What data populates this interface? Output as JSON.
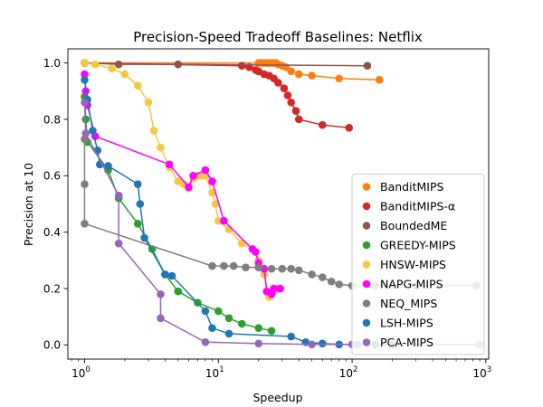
{
  "chart_data": {
    "type": "scatter",
    "title": "Precision-Speed Tradeoff Baselines: Netflix",
    "xlabel": "Speedup",
    "ylabel": "Precision at 10",
    "x_scale": "log",
    "xlim": [
      0.75,
      1050
    ],
    "ylim": [
      -0.05,
      1.05
    ],
    "x_ticks": [
      {
        "value": 1,
        "label": "10",
        "sup": "0"
      },
      {
        "value": 10,
        "label": "10",
        "sup": "1"
      },
      {
        "value": 100,
        "label": "10",
        "sup": "2"
      },
      {
        "value": 1000,
        "label": "10",
        "sup": "3"
      }
    ],
    "y_ticks": [
      {
        "value": 0.0,
        "label": "0.0"
      },
      {
        "value": 0.2,
        "label": "0.2"
      },
      {
        "value": 0.4,
        "label": "0.4"
      },
      {
        "value": 0.6,
        "label": "0.6"
      },
      {
        "value": 0.8,
        "label": "0.8"
      },
      {
        "value": 1.0,
        "label": "1.0"
      }
    ],
    "grid": false,
    "legend_position": "lower-right",
    "series": [
      {
        "name": "BanditMIPS",
        "color": "#ff7f0e",
        "points": [
          [
            1,
            1
          ],
          [
            20,
            1
          ],
          [
            21,
            1
          ],
          [
            22,
            1
          ],
          [
            23,
            1
          ],
          [
            24,
            1
          ],
          [
            25,
            1
          ],
          [
            26,
            1
          ],
          [
            27,
            1
          ],
          [
            28,
            0.995
          ],
          [
            30,
            0.99
          ],
          [
            32,
            0.985
          ],
          [
            35,
            0.97
          ],
          [
            40,
            0.96
          ],
          [
            50,
            0.955
          ],
          [
            80,
            0.945
          ],
          [
            160,
            0.94
          ]
        ]
      },
      {
        "name": "BanditMIPS-α",
        "color": "#d62728",
        "points": [
          [
            1,
            1
          ],
          [
            15,
            0.99
          ],
          [
            17,
            0.985
          ],
          [
            19,
            0.975
          ],
          [
            20,
            0.97
          ],
          [
            22,
            0.96
          ],
          [
            24,
            0.955
          ],
          [
            26,
            0.945
          ],
          [
            28,
            0.93
          ],
          [
            31,
            0.91
          ],
          [
            33,
            0.885
          ],
          [
            35,
            0.86
          ],
          [
            38,
            0.83
          ],
          [
            40,
            0.8
          ],
          [
            60,
            0.78
          ],
          [
            95,
            0.77
          ]
        ]
      },
      {
        "name": "BoundedME",
        "color": "#8c564b",
        "points": [
          [
            1,
            1
          ],
          [
            1.8,
            0.995
          ],
          [
            5,
            0.995
          ],
          [
            130,
            0.99
          ]
        ]
      },
      {
        "name": "GREEDY-MIPS",
        "color": "#2ca02c",
        "points": [
          [
            1,
            0.88
          ],
          [
            1.02,
            0.8
          ],
          [
            1.05,
            0.72
          ],
          [
            1.5,
            0.62
          ],
          [
            1.8,
            0.52
          ],
          [
            2.5,
            0.43
          ],
          [
            3.2,
            0.34
          ],
          [
            4,
            0.25
          ],
          [
            5,
            0.19
          ],
          [
            7,
            0.15
          ],
          [
            10,
            0.12
          ],
          [
            12,
            0.095
          ],
          [
            15,
            0.075
          ],
          [
            20,
            0.06
          ],
          [
            25,
            0.05
          ]
        ]
      },
      {
        "name": "HNSW-MIPS",
        "color": "#f5c842",
        "points": [
          [
            1,
            1
          ],
          [
            1.2,
            0.995
          ],
          [
            1.6,
            0.98
          ],
          [
            2,
            0.96
          ],
          [
            2.5,
            0.92
          ],
          [
            3,
            0.86
          ],
          [
            3.3,
            0.76
          ],
          [
            3.7,
            0.7
          ],
          [
            4.3,
            0.63
          ],
          [
            5,
            0.58
          ],
          [
            5.5,
            0.57
          ],
          [
            6,
            0.555
          ],
          [
            6.5,
            0.59
          ],
          [
            7,
            0.6
          ],
          [
            7.5,
            0.6
          ],
          [
            8,
            0.6
          ],
          [
            9,
            0.54
          ],
          [
            9.5,
            0.5
          ],
          [
            10,
            0.44
          ],
          [
            12,
            0.41
          ],
          [
            15,
            0.36
          ],
          [
            18,
            0.34
          ],
          [
            20,
            0.3
          ],
          [
            22,
            0.25
          ],
          [
            24,
            0.17
          ],
          [
            26,
            0.19
          ],
          [
            28,
            0.2
          ]
        ]
      },
      {
        "name": "NAPG-MIPS",
        "color": "#ff00ff",
        "points": [
          [
            1,
            0.96
          ],
          [
            1.02,
            0.9
          ],
          [
            1.05,
            0.85
          ],
          [
            1.2,
            0.74
          ],
          [
            4.3,
            0.64
          ],
          [
            6,
            0.56
          ],
          [
            6.5,
            0.6
          ],
          [
            8,
            0.62
          ],
          [
            9,
            0.58
          ],
          [
            11,
            0.44
          ],
          [
            18,
            0.34
          ],
          [
            19,
            0.33
          ],
          [
            20,
            0.29
          ],
          [
            22,
            0.27
          ],
          [
            23,
            0.19
          ],
          [
            25,
            0.18
          ],
          [
            26,
            0.2
          ],
          [
            29,
            0.2
          ]
        ]
      },
      {
        "name": "NEQ_MIPS",
        "color": "#7f7f7f",
        "points": [
          [
            1,
            0.73
          ],
          [
            1,
            0.57
          ],
          [
            1,
            0.43
          ],
          [
            9,
            0.28
          ],
          [
            11,
            0.28
          ],
          [
            13,
            0.28
          ],
          [
            16,
            0.275
          ],
          [
            20,
            0.275
          ],
          [
            25,
            0.27
          ],
          [
            30,
            0.27
          ],
          [
            35,
            0.27
          ],
          [
            40,
            0.265
          ],
          [
            50,
            0.25
          ],
          [
            60,
            0.24
          ],
          [
            70,
            0.225
          ],
          [
            80,
            0.215
          ],
          [
            100,
            0.21
          ],
          [
            150,
            0.21
          ],
          [
            200,
            0.21
          ],
          [
            300,
            0.21
          ],
          [
            850,
            0.21
          ]
        ]
      },
      {
        "name": "LSH-MIPS",
        "color": "#1f77b4",
        "points": [
          [
            1,
            0.94
          ],
          [
            1.05,
            0.87
          ],
          [
            1.15,
            0.76
          ],
          [
            1.25,
            0.69
          ],
          [
            1.3,
            0.64
          ],
          [
            1.5,
            0.635
          ],
          [
            2.5,
            0.57
          ],
          [
            2.6,
            0.5
          ],
          [
            2.8,
            0.38
          ],
          [
            4,
            0.25
          ],
          [
            4.5,
            0.245
          ],
          [
            8,
            0.12
          ],
          [
            9,
            0.06
          ],
          [
            12,
            0.04
          ],
          [
            35,
            0.03
          ],
          [
            45,
            0.01
          ],
          [
            60,
            0.005
          ],
          [
            80,
            0.002
          ],
          [
            110,
            0.001
          ],
          [
            150,
            0.001
          ]
        ]
      },
      {
        "name": "PCA-MIPS",
        "color": "#9467bd",
        "points": [
          [
            1,
            0.86
          ],
          [
            1.02,
            0.75
          ],
          [
            1.8,
            0.53
          ],
          [
            1.8,
            0.36
          ],
          [
            3.7,
            0.18
          ],
          [
            3.7,
            0.095
          ],
          [
            8,
            0.01
          ],
          [
            20,
            0.005
          ],
          [
            50,
            0.002
          ],
          [
            100,
            0.002
          ],
          [
            200,
            0.001
          ],
          [
            900,
            0.001
          ]
        ]
      }
    ]
  }
}
